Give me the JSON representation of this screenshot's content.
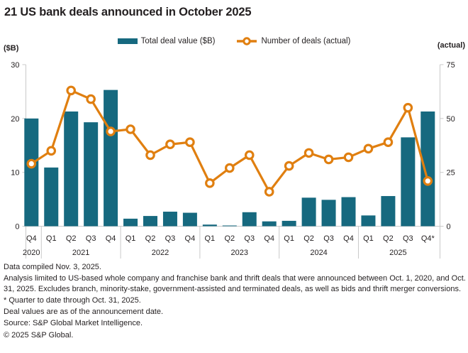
{
  "title": "21 US bank deals announced in October 2025",
  "legend": {
    "bar_label": "Total deal value ($B)",
    "line_label": "Number of deals (actual)"
  },
  "colors": {
    "bar": "#16697F",
    "line": "#E07F10",
    "axis": "#c9c9c9",
    "text": "#231f20"
  },
  "left_axis_unit": "($B)",
  "right_axis_unit": "(actual)",
  "chart_data": {
    "type": "bar+line combo",
    "categories": [
      "Q4",
      "Q1",
      "Q2",
      "Q3",
      "Q4",
      "Q1",
      "Q2",
      "Q3",
      "Q4",
      "Q1",
      "Q2",
      "Q3",
      "Q4",
      "Q1",
      "Q2",
      "Q3",
      "Q4",
      "Q1",
      "Q2",
      "Q3",
      "Q4*"
    ],
    "year_groups": [
      {
        "label": "2020",
        "quarters": 1
      },
      {
        "label": "2021",
        "quarters": 4
      },
      {
        "label": "2022",
        "quarters": 4
      },
      {
        "label": "2023",
        "quarters": 4
      },
      {
        "label": "2024",
        "quarters": 4
      },
      {
        "label": "2025",
        "quarters": 4
      }
    ],
    "series": [
      {
        "name": "Total deal value ($B)",
        "type": "bar",
        "axis": "left",
        "values": [
          20.0,
          10.9,
          21.3,
          19.3,
          25.3,
          1.4,
          1.9,
          2.7,
          2.5,
          0.3,
          0.1,
          2.6,
          0.9,
          1.0,
          5.3,
          4.9,
          5.4,
          2.0,
          5.6,
          16.5,
          21.3
        ]
      },
      {
        "name": "Number of deals (actual)",
        "type": "line",
        "axis": "right",
        "values": [
          29,
          35,
          63,
          59,
          44,
          45,
          33,
          38,
          39,
          20,
          27,
          33,
          16,
          28,
          34,
          31,
          32,
          36,
          39,
          55,
          21
        ]
      }
    ],
    "ylabel": "($B)",
    "ylim": [
      0,
      30
    ],
    "yticks": [
      0,
      10,
      20,
      30
    ],
    "y2label": "(actual)",
    "y2lim": [
      0,
      75
    ],
    "y2ticks": [
      0,
      25,
      50,
      75
    ],
    "grid": false,
    "legend_position": "top"
  },
  "footnotes": [
    "Data compiled Nov. 3, 2025.",
    "Analysis limited to US-based whole company and franchise bank and thrift deals that were announced between Oct. 1, 2020, and Oct. 31, 2025. Excludes branch, minority-stake, government-assisted and terminated deals, as well as bids and thrift merger conversions.",
    "* Quarter to date through Oct. 31, 2025.",
    "Deal values are as of the announcement date.",
    "Source: S&P Global Market Intelligence.",
    "© 2025 S&P Global."
  ]
}
